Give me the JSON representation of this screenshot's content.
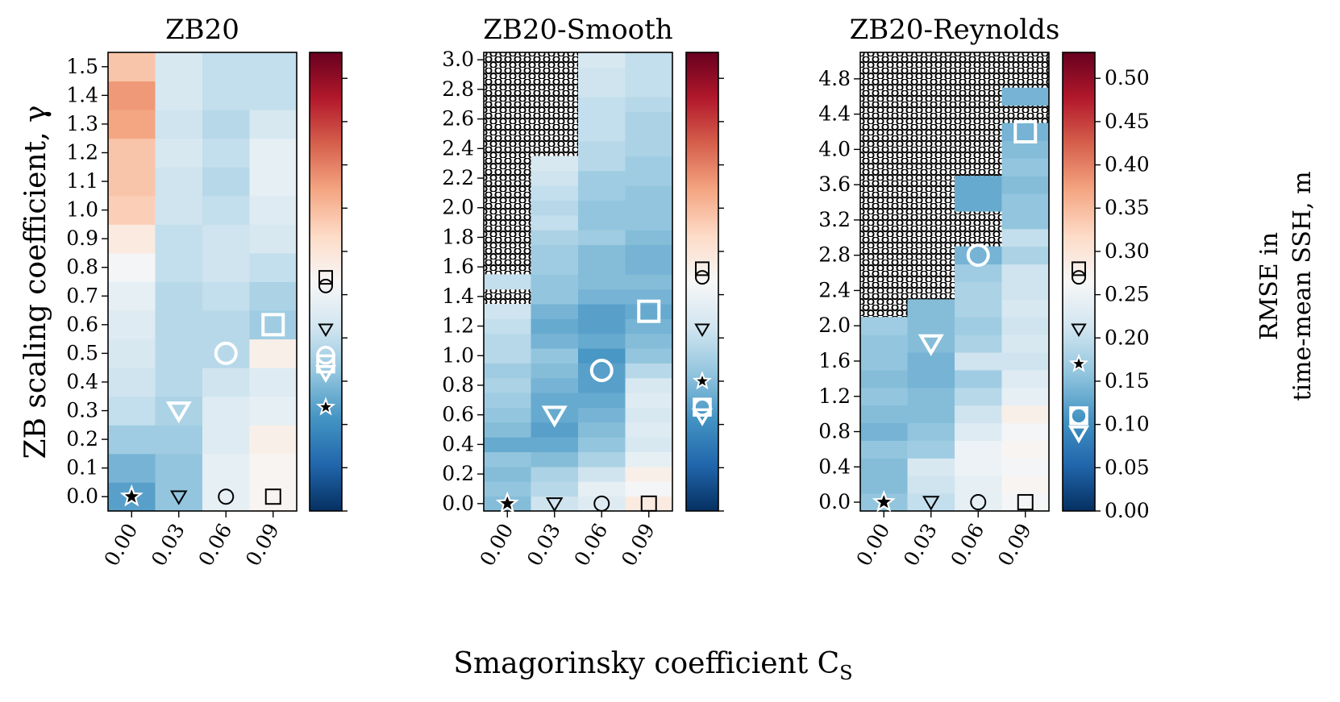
{
  "figure": {
    "xlabel": "Smagorinsky coefficient C",
    "xlabel_sub": "S",
    "ylabel": "ZB scaling coefficient, γ",
    "colorbar_label_line1": "RMSE in",
    "colorbar_label_line2": "time-mean SSH, m"
  },
  "colorbar": {
    "vmin": 0.0,
    "vmax": 0.53,
    "ticks": [
      "0.00",
      "0.05",
      "0.10",
      "0.15",
      "0.20",
      "0.25",
      "0.30",
      "0.35",
      "0.40",
      "0.45",
      "0.50"
    ],
    "colormap": "RdBu_r"
  },
  "chart_data": [
    {
      "type": "heatmap",
      "title": "ZB20",
      "x_categories": [
        "0.00",
        "0.03",
        "0.06",
        "0.09"
      ],
      "y_values": [
        0.0,
        0.1,
        0.2,
        0.3,
        0.4,
        0.5,
        0.6,
        0.7,
        0.8,
        0.9,
        1.0,
        1.1,
        1.2,
        1.3,
        1.4,
        1.5
      ],
      "y_ticks": [
        "0.0",
        "0.1",
        "0.2",
        "0.3",
        "0.4",
        "0.5",
        "0.6",
        "0.7",
        "0.8",
        "0.9",
        "1.0",
        "1.1",
        "1.2",
        "1.3",
        "1.4",
        "1.5"
      ],
      "ylim": [
        -0.05,
        1.55
      ],
      "columns": [
        {
          "rmse": [
            0.12,
            0.14,
            0.17,
            0.2,
            0.21,
            0.22,
            0.23,
            0.24,
            0.26,
            0.29,
            0.33,
            0.34,
            0.34,
            0.37,
            0.38,
            0.34
          ],
          "hatched_from": null
        },
        {
          "rmse": [
            0.16,
            0.16,
            0.17,
            0.18,
            0.19,
            0.19,
            0.19,
            0.19,
            0.2,
            0.2,
            0.21,
            0.21,
            0.22,
            0.21,
            0.22,
            0.22
          ],
          "hatched_from": null
        },
        {
          "rmse": [
            0.24,
            0.24,
            0.23,
            0.23,
            0.21,
            0.19,
            0.19,
            0.2,
            0.21,
            0.21,
            0.2,
            0.19,
            0.2,
            0.19,
            0.2,
            0.2
          ],
          "hatched_from": null
        },
        {
          "rmse": [
            0.27,
            0.27,
            0.28,
            0.24,
            0.23,
            0.28,
            0.17,
            0.18,
            0.2,
            0.22,
            0.23,
            0.24,
            0.24,
            0.22,
            0.2,
            0.2
          ],
          "hatched_from": null
        }
      ],
      "optimum": [
        {
          "marker": "star",
          "x": "0.00",
          "y": 0.0,
          "rmse": 0.14
        },
        {
          "marker": "triangle",
          "x": "0.03",
          "y": 0.3,
          "rmse": 0.16
        },
        {
          "marker": "circle",
          "x": "0.06",
          "y": 0.5,
          "rmse": 0.18
        },
        {
          "marker": "square",
          "x": "0.09",
          "y": 0.6,
          "rmse": 0.17
        }
      ],
      "gamma_zero": [
        {
          "marker": "star",
          "x": "0.00",
          "rmse": 0.12
        },
        {
          "marker": "triangle",
          "x": "0.03",
          "rmse": 0.21
        },
        {
          "marker": "circle",
          "x": "0.06",
          "rmse": 0.26
        },
        {
          "marker": "square",
          "x": "0.09",
          "rmse": 0.27
        }
      ]
    },
    {
      "type": "heatmap",
      "title": "ZB20-Smooth",
      "x_categories": [
        "0.00",
        "0.03",
        "0.06",
        "0.09"
      ],
      "y_values": [
        0.0,
        0.1,
        0.2,
        0.3,
        0.4,
        0.5,
        0.6,
        0.7,
        0.8,
        0.9,
        1.0,
        1.1,
        1.2,
        1.3,
        1.4,
        1.5,
        1.6,
        1.7,
        1.8,
        1.9,
        2.0,
        2.1,
        2.2,
        2.3,
        2.4,
        2.5,
        2.6,
        2.7,
        2.8,
        2.9,
        3.0
      ],
      "y_ticks": [
        "0.0",
        "0.2",
        "0.4",
        "0.6",
        "0.8",
        "1.0",
        "1.2",
        "1.4",
        "1.6",
        "1.8",
        "2.0",
        "2.2",
        "2.4",
        "2.6",
        "2.8",
        "3.0"
      ],
      "ylim": [
        -0.05,
        3.05
      ],
      "columns": [
        {
          "rmse": [
            0.15,
            0.16,
            0.15,
            0.16,
            0.13,
            0.15,
            0.16,
            0.17,
            0.18,
            0.17,
            0.19,
            0.19,
            0.2,
            0.21,
            null,
            0.2,
            null,
            null,
            null,
            null,
            null,
            null,
            null,
            null,
            null,
            null,
            null,
            null,
            null,
            null,
            null
          ],
          "hatched_from": 1.35
        },
        {
          "rmse": [
            0.21,
            0.19,
            0.18,
            0.15,
            0.13,
            0.12,
            0.13,
            0.13,
            0.14,
            0.15,
            0.16,
            0.14,
            0.13,
            0.14,
            0.16,
            0.16,
            0.17,
            0.17,
            0.18,
            0.2,
            0.19,
            0.2,
            0.21,
            0.22,
            null,
            null,
            null,
            null,
            null,
            null,
            null
          ],
          "hatched_from": 2.35
        },
        {
          "rmse": [
            0.23,
            0.24,
            0.21,
            0.18,
            0.16,
            0.15,
            0.14,
            0.13,
            0.12,
            0.12,
            0.11,
            0.13,
            0.12,
            0.12,
            0.14,
            0.15,
            0.15,
            0.15,
            0.17,
            0.16,
            0.16,
            0.17,
            0.17,
            0.19,
            0.19,
            0.2,
            0.2,
            0.2,
            0.21,
            0.21,
            0.22
          ],
          "hatched_from": null
        },
        {
          "rmse": [
            0.29,
            0.26,
            0.28,
            0.24,
            0.22,
            0.23,
            0.22,
            0.23,
            0.22,
            0.19,
            0.16,
            0.15,
            0.14,
            0.13,
            0.14,
            0.15,
            0.14,
            0.14,
            0.15,
            0.16,
            0.16,
            0.16,
            0.17,
            0.17,
            0.18,
            0.18,
            0.18,
            0.19,
            0.2,
            0.2,
            0.2
          ],
          "hatched_from": null
        }
      ],
      "optimum": [
        {
          "marker": "star",
          "x": "0.00",
          "y": 0.0,
          "rmse": 0.14
        },
        {
          "marker": "triangle",
          "x": "0.03",
          "y": 0.6,
          "rmse": 0.11
        },
        {
          "marker": "circle",
          "x": "0.06",
          "y": 0.9,
          "rmse": 0.12
        },
        {
          "marker": "square",
          "x": "0.09",
          "y": 1.3,
          "rmse": 0.12
        }
      ],
      "gamma_zero": [
        {
          "marker": "star",
          "x": "0.00",
          "rmse": 0.15
        },
        {
          "marker": "triangle",
          "x": "0.03",
          "rmse": 0.21
        },
        {
          "marker": "circle",
          "x": "0.06",
          "rmse": 0.27
        },
        {
          "marker": "square",
          "x": "0.09",
          "rmse": 0.28
        }
      ]
    },
    {
      "type": "heatmap",
      "title": "ZB20-Reynolds",
      "x_categories": [
        "0.00",
        "0.03",
        "0.06",
        "0.09"
      ],
      "y_values": [
        0.0,
        0.2,
        0.4,
        0.6,
        0.8,
        1.0,
        1.2,
        1.4,
        1.6,
        1.8,
        2.0,
        2.2,
        2.4,
        2.6,
        2.8,
        3.0,
        3.2,
        3.4,
        3.6,
        3.8,
        4.0,
        4.2,
        4.4,
        4.6,
        4.8,
        5.0
      ],
      "y_ticks": [
        "0.0",
        "0.4",
        "0.8",
        "1.2",
        "1.6",
        "2.0",
        "2.4",
        "2.8",
        "3.2",
        "3.6",
        "4.0",
        "4.4",
        "4.8"
      ],
      "ylim": [
        -0.1,
        5.1
      ],
      "columns": [
        {
          "rmse": [
            0.16,
            0.15,
            0.15,
            0.16,
            0.14,
            0.15,
            0.16,
            0.15,
            0.16,
            0.16,
            0.17,
            null,
            null,
            null,
            null,
            null,
            null,
            null,
            null,
            null,
            null,
            null,
            null,
            null,
            null,
            null
          ],
          "hatched_from": 2.1
        },
        {
          "rmse": [
            0.2,
            0.21,
            0.22,
            0.17,
            0.16,
            0.15,
            0.15,
            0.14,
            0.14,
            0.15,
            0.15,
            0.15,
            null,
            null,
            null,
            null,
            null,
            null,
            null,
            null,
            null,
            null,
            null,
            null,
            null,
            null
          ],
          "hatched_from": 2.3
        },
        {
          "rmse": [
            0.24,
            0.24,
            0.25,
            0.25,
            0.23,
            0.21,
            0.19,
            0.17,
            0.21,
            0.18,
            0.17,
            0.18,
            0.18,
            0.17,
            0.14,
            null,
            null,
            0.13,
            0.13,
            null,
            null,
            null,
            null,
            null,
            null,
            null
          ],
          "hatched_from": 2.9
        },
        {
          "rmse": [
            0.26,
            0.27,
            0.26,
            0.27,
            0.26,
            0.28,
            0.24,
            0.23,
            0.21,
            0.22,
            0.21,
            0.22,
            0.21,
            0.21,
            0.18,
            0.2,
            0.16,
            0.16,
            0.15,
            0.16,
            0.15,
            0.14,
            null,
            0.14,
            null,
            null
          ],
          "hatched_from": 4.3
        }
      ],
      "optimum": [
        {
          "marker": "star",
          "x": "0.00",
          "y": 0.0,
          "rmse": 0.14
        },
        {
          "marker": "triangle",
          "x": "0.03",
          "y": 1.8,
          "rmse": 0.09
        },
        {
          "marker": "circle",
          "x": "0.06",
          "y": 2.8,
          "rmse": 0.11
        },
        {
          "marker": "square",
          "x": "0.09",
          "y": 4.2,
          "rmse": 0.11
        }
      ],
      "gamma_zero": [
        {
          "marker": "star",
          "x": "0.00",
          "rmse": 0.17
        },
        {
          "marker": "triangle",
          "x": "0.03",
          "rmse": 0.21
        },
        {
          "marker": "circle",
          "x": "0.06",
          "rmse": 0.27
        },
        {
          "marker": "square",
          "x": "0.09",
          "rmse": 0.28
        }
      ]
    }
  ]
}
